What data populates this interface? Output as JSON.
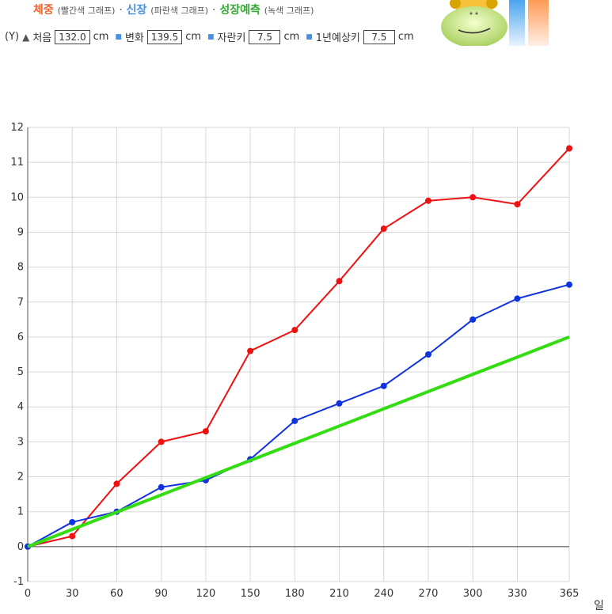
{
  "legend": {
    "weight": "체중",
    "weight_sub": "(빨간색 그래프)",
    "height": "신장",
    "height_sub": "(파란색 그래프)",
    "growth": "성장예측",
    "growth_sub": "(녹색 그래프)",
    "separator": "·"
  },
  "controls": {
    "axis_marker": "(Y)",
    "start_label": "처음",
    "start_value": "132.0",
    "unit": "cm",
    "change_label": "변화",
    "change_value": "139.5",
    "grown_label": "자란키",
    "grown_value": "7.5",
    "yearly_label": "1년예상키",
    "yearly_value": "7.5"
  },
  "colors": {
    "weight": "#ee1111",
    "height": "#1133dd",
    "growth": "#33dd11",
    "weight_title": "#ee6633",
    "height_title": "#4a90e2",
    "growth_title": "#33aa33"
  },
  "chart_data": {
    "type": "line",
    "xlabel": "일",
    "ylabel": "",
    "xlim": [
      0,
      365
    ],
    "ylim": [
      -1,
      12
    ],
    "x_ticks": [
      0,
      30,
      60,
      90,
      120,
      150,
      180,
      210,
      240,
      270,
      300,
      330,
      365
    ],
    "y_ticks": [
      -1,
      0,
      1,
      2,
      3,
      4,
      5,
      6,
      7,
      8,
      9,
      10,
      11,
      12
    ],
    "grid": true,
    "series": [
      {
        "key": "weight",
        "x": [
          0,
          30,
          60,
          90,
          120,
          150,
          180,
          210,
          240,
          270,
          300,
          330,
          365
        ],
        "y": [
          0,
          0.3,
          1.8,
          3.0,
          3.3,
          5.6,
          6.2,
          7.6,
          9.1,
          9.9,
          10.0,
          9.8,
          11.4
        ],
        "markers": true
      },
      {
        "key": "height",
        "x": [
          0,
          30,
          60,
          90,
          120,
          150,
          180,
          210,
          240,
          270,
          300,
          330,
          365
        ],
        "y": [
          0,
          0.7,
          1.0,
          1.7,
          1.9,
          2.5,
          3.6,
          4.1,
          4.6,
          5.5,
          6.5,
          7.1,
          7.5
        ],
        "markers": true
      },
      {
        "key": "growth",
        "x": [
          0,
          365
        ],
        "y": [
          0,
          6.0
        ],
        "markers": false
      }
    ]
  }
}
